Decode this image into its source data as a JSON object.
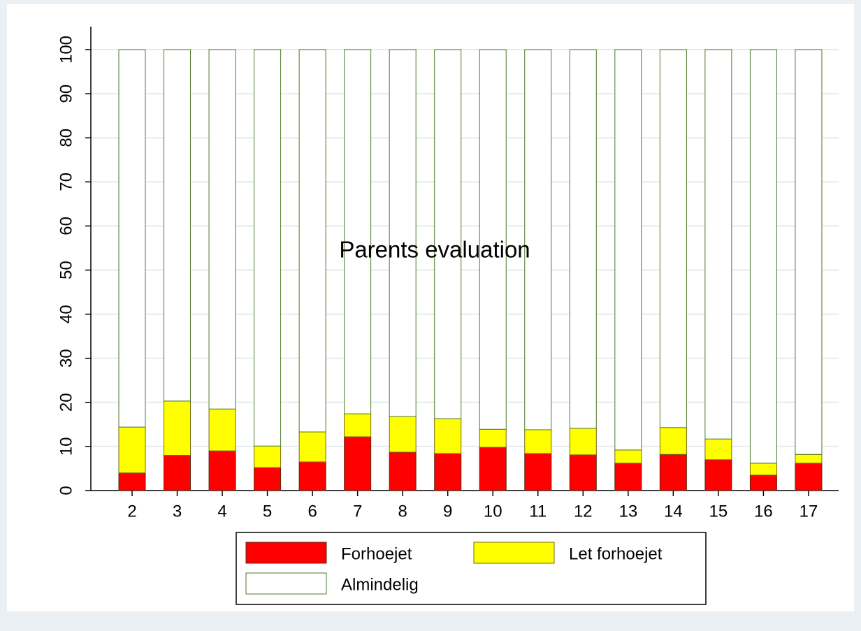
{
  "chart_data": {
    "type": "stacked_bar",
    "title": "Parents evaluation",
    "categories": [
      "2",
      "3",
      "4",
      "5",
      "6",
      "7",
      "8",
      "9",
      "10",
      "11",
      "12",
      "13",
      "14",
      "15",
      "16",
      "17"
    ],
    "series": [
      {
        "name": "Forhoejet",
        "color": "#ff0000",
        "edgecolor": "#5a2a10",
        "values": [
          4,
          8,
          9,
          5.2,
          6.5,
          12.2,
          8.7,
          8.4,
          9.8,
          8.4,
          8.1,
          6.2,
          8.2,
          7,
          3.5,
          6.2
        ]
      },
      {
        "name": "Let forhoejet",
        "color": "#ffff00",
        "edgecolor": "#7a6a10",
        "values": [
          10.4,
          12.3,
          9.5,
          4.9,
          6.8,
          5.2,
          8.1,
          7.9,
          4.1,
          5.4,
          6,
          3,
          6.1,
          4.7,
          2.7,
          2
        ]
      },
      {
        "name": "Almindelig",
        "color": "#ffffff",
        "edgecolor": "#4f7a28",
        "values": [
          85.6,
          79.7,
          81.5,
          89.9,
          86.7,
          82.6,
          83.2,
          83.7,
          86.1,
          86.2,
          85.9,
          90.8,
          85.7,
          88.3,
          93.8,
          91.8
        ]
      }
    ],
    "ylim": [
      0,
      100
    ],
    "yticks": [
      0,
      10,
      20,
      30,
      40,
      50,
      60,
      70,
      80,
      90,
      100
    ],
    "grid": true
  }
}
